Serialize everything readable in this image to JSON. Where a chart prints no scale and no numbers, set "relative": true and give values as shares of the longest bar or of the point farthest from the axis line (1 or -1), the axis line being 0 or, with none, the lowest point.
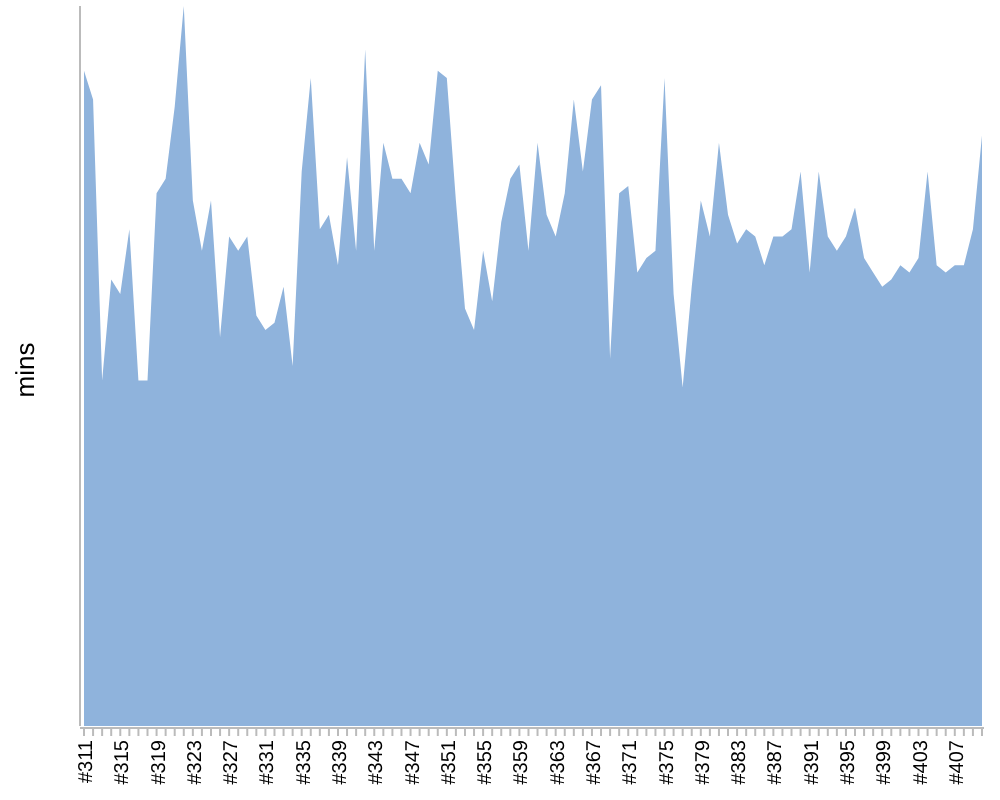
{
  "chart_data": {
    "type": "area",
    "relative": true,
    "ylabel": "mins",
    "color": "#8fb3dc",
    "categories": [
      "#311",
      null,
      null,
      null,
      "#315",
      null,
      null,
      null,
      "#319",
      null,
      null,
      null,
      "#323",
      null,
      null,
      null,
      "#327",
      null,
      null,
      null,
      "#331",
      null,
      null,
      null,
      "#335",
      null,
      null,
      null,
      "#339",
      null,
      null,
      null,
      "#343",
      null,
      null,
      null,
      "#347",
      null,
      null,
      null,
      "#351",
      null,
      null,
      null,
      "#355",
      null,
      null,
      null,
      "#359",
      null,
      null,
      null,
      "#363",
      null,
      null,
      null,
      "#367",
      null,
      null,
      null,
      "#371",
      null,
      null,
      null,
      "#375",
      null,
      null,
      null,
      "#379",
      null,
      null,
      null,
      "#383",
      null,
      null,
      null,
      "#387",
      null,
      null,
      null,
      "#391",
      null,
      null,
      null,
      "#395",
      null,
      null,
      null,
      "#399",
      null,
      null,
      null,
      "#403",
      null,
      null,
      null,
      "#407",
      null,
      null,
      null
    ],
    "values": [
      0.91,
      0.87,
      0.48,
      0.62,
      0.6,
      0.69,
      0.48,
      0.48,
      0.74,
      0.76,
      0.86,
      1,
      0.73,
      0.66,
      0.73,
      0.54,
      0.68,
      0.66,
      0.68,
      0.57,
      0.55,
      0.56,
      0.61,
      0.5,
      0.77,
      0.9,
      0.69,
      0.71,
      0.64,
      0.79,
      0.66,
      0.94,
      0.66,
      0.81,
      0.76,
      0.76,
      0.74,
      0.81,
      0.78,
      0.91,
      0.9,
      0.73,
      0.58,
      0.55,
      0.66,
      0.59,
      0.7,
      0.76,
      0.78,
      0.66,
      0.81,
      0.71,
      0.68,
      0.74,
      0.87,
      0.77,
      0.87,
      0.89,
      0.51,
      0.74,
      0.75,
      0.63,
      0.65,
      0.66,
      0.9,
      0.6,
      0.47,
      0.61,
      0.73,
      0.68,
      0.81,
      0.71,
      0.67,
      0.69,
      0.68,
      0.64,
      0.68,
      0.68,
      0.69,
      0.77,
      0.63,
      0.77,
      0.68,
      0.66,
      0.68,
      0.72,
      0.65,
      0.63,
      0.61,
      0.62,
      0.64,
      0.63,
      0.65,
      0.77,
      0.64,
      0.63,
      0.64,
      0.64,
      0.69,
      0.82
    ]
  }
}
